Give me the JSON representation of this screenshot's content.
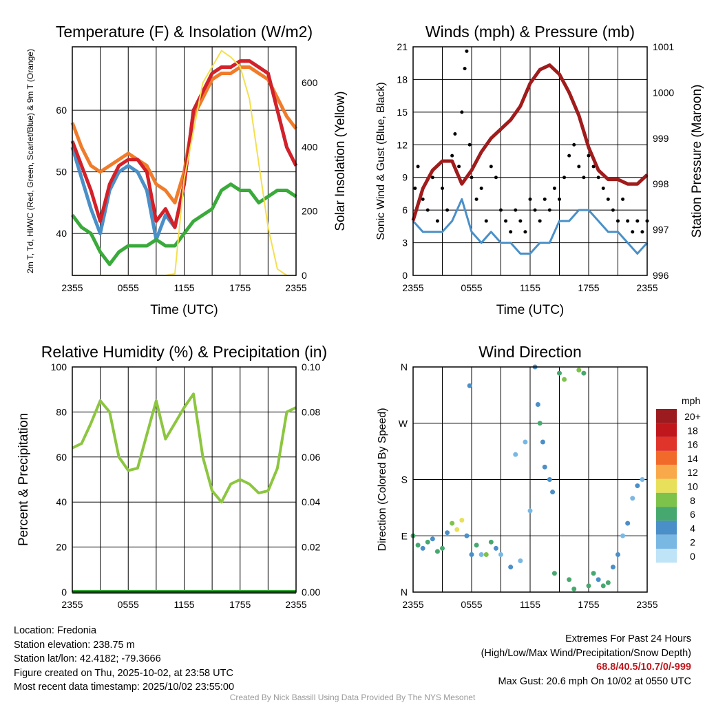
{
  "chart_data": [
    {
      "type": "line",
      "title": "Temperature (F) & Insolation (W/m2)",
      "xlabel": "Time (UTC)",
      "ylabel": "2m T, Td, HI/WC (Red, Green, Scarlet/Blue) & 9m T (Orange)",
      "ylabel2": "Solar Insolation (Yellow)",
      "xticks": [
        "2355",
        "0555",
        "1155",
        "1755",
        "2355"
      ],
      "yticks": [
        40,
        50,
        60
      ],
      "y2ticks": [
        0,
        200,
        400,
        600
      ],
      "xlim": [
        0,
        24
      ],
      "ylim": [
        33.2,
        70.3
      ],
      "y2lim": [
        0,
        712
      ],
      "x": [
        0,
        1,
        2,
        3,
        4,
        5,
        6,
        7,
        8,
        9,
        10,
        11,
        12,
        13,
        14,
        15,
        16,
        17,
        18,
        19,
        20,
        21,
        22,
        23,
        24
      ],
      "series": [
        {
          "name": "9m T",
          "color": "#f07c2a",
          "axis": "left",
          "values": [
            58,
            54,
            51,
            50,
            51,
            52,
            53,
            52,
            51,
            48,
            47,
            45,
            50,
            59,
            62,
            65,
            66,
            66,
            67,
            67,
            66,
            65,
            62,
            59,
            57
          ]
        },
        {
          "name": "HI/WC",
          "color": "#4a90c8",
          "axis": "left",
          "values": [
            54,
            49,
            44,
            40,
            47,
            50,
            51,
            50,
            47,
            39,
            43,
            41,
            48,
            60,
            63,
            66,
            67,
            67,
            68,
            68,
            67,
            66,
            60,
            54,
            51
          ]
        },
        {
          "name": "2m T",
          "color": "#d42028",
          "axis": "left",
          "values": [
            55,
            51,
            47,
            42,
            48,
            51,
            52,
            52,
            50,
            42,
            44,
            41,
            48,
            60,
            63,
            66,
            67,
            67,
            68,
            68,
            67,
            66,
            60,
            54,
            51
          ]
        },
        {
          "name": "Td",
          "color": "#3aaa3a",
          "axis": "left",
          "values": [
            43,
            41,
            40,
            37,
            35,
            37,
            38,
            38,
            38,
            39,
            38,
            38,
            40,
            42,
            43,
            44,
            47,
            48,
            47,
            47,
            45,
            46,
            47,
            47,
            46
          ]
        },
        {
          "name": "Solar",
          "color": "#f5df4d",
          "axis": "right",
          "values": [
            0,
            0,
            0,
            0,
            0,
            0,
            0,
            0,
            0,
            0,
            0,
            5,
            300,
            450,
            600,
            650,
            700,
            680,
            650,
            550,
            350,
            150,
            20,
            0,
            0
          ]
        }
      ]
    },
    {
      "type": "line",
      "title": "Winds (mph) & Pressure (mb)",
      "xlabel": "Time (UTC)",
      "ylabel": "Sonic Wind & Gust (Blue, Black)",
      "ylabel2": "Station Pressure (Maroon)",
      "xticks": [
        "2355",
        "0555",
        "1155",
        "1755",
        "2355"
      ],
      "yticks": [
        0,
        3,
        6,
        9,
        12,
        15,
        18,
        21
      ],
      "y2ticks": [
        996,
        997,
        998,
        999,
        1000,
        1001
      ],
      "xlim": [
        0,
        24
      ],
      "ylim": [
        0,
        21
      ],
      "y2lim": [
        996,
        1001
      ],
      "x": [
        0,
        1,
        2,
        3,
        4,
        5,
        6,
        7,
        8,
        9,
        10,
        11,
        12,
        13,
        14,
        15,
        16,
        17,
        18,
        19,
        20,
        21,
        22,
        23,
        24
      ],
      "wind": {
        "name": "Sonic Wind",
        "color": "#4a90c8",
        "values": [
          5,
          4,
          4,
          4,
          5,
          7,
          4,
          3,
          4,
          3,
          3,
          2,
          2,
          3,
          3,
          5,
          5,
          6,
          6,
          5,
          4,
          4,
          3,
          2,
          3
        ]
      },
      "pressure": {
        "name": "Station Pressure",
        "color": "#a01c1c",
        "values": [
          997.2,
          997.9,
          998.3,
          998.5,
          998.5,
          998.0,
          998.3,
          998.7,
          999,
          999.2,
          999.4,
          999.7,
          1000.2,
          1000.5,
          1000.6,
          1000.4,
          1000,
          999.5,
          998.8,
          998.3,
          998.1,
          998.1,
          998,
          998,
          998.2
        ]
      },
      "gust": {
        "name": "Gust",
        "color": "#000000",
        "points": [
          [
            0.2,
            8
          ],
          [
            0.5,
            10
          ],
          [
            1,
            7
          ],
          [
            1.5,
            6
          ],
          [
            2,
            9
          ],
          [
            2.5,
            5
          ],
          [
            3,
            8
          ],
          [
            3.5,
            6
          ],
          [
            4,
            11
          ],
          [
            4.3,
            13
          ],
          [
            4.7,
            10
          ],
          [
            5,
            15
          ],
          [
            5.3,
            19
          ],
          [
            5.5,
            20.6
          ],
          [
            5.8,
            12
          ],
          [
            6,
            9
          ],
          [
            6.5,
            7
          ],
          [
            7,
            8
          ],
          [
            7.5,
            5
          ],
          [
            8,
            10
          ],
          [
            8.5,
            9
          ],
          [
            9,
            6
          ],
          [
            9.5,
            5
          ],
          [
            10,
            4
          ],
          [
            10.5,
            6
          ],
          [
            11,
            5
          ],
          [
            11.5,
            4
          ],
          [
            12,
            7
          ],
          [
            12.5,
            6
          ],
          [
            13,
            5
          ],
          [
            13.5,
            7
          ],
          [
            14,
            6
          ],
          [
            14.5,
            8
          ],
          [
            15,
            7
          ],
          [
            15.5,
            9
          ],
          [
            16,
            11
          ],
          [
            16.5,
            12
          ],
          [
            17,
            10
          ],
          [
            17.5,
            9
          ],
          [
            18,
            11
          ],
          [
            18.5,
            10
          ],
          [
            19,
            9
          ],
          [
            19.5,
            8
          ],
          [
            20,
            7
          ],
          [
            20.5,
            6
          ],
          [
            21,
            5
          ],
          [
            21.5,
            7
          ],
          [
            22,
            5
          ],
          [
            22.5,
            4
          ],
          [
            23,
            5
          ],
          [
            23.5,
            4
          ],
          [
            24,
            5
          ]
        ]
      }
    },
    {
      "type": "line",
      "title": "Relative Humidity (%) & Precipitation (in)",
      "ylabel": "Percent & Precipitation",
      "xticks": [
        "2355",
        "0555",
        "1155",
        "1755",
        "2355"
      ],
      "yticks": [
        0,
        20,
        40,
        60,
        80,
        100
      ],
      "y2ticks": [
        "0.00",
        "0.02",
        "0.04",
        "0.06",
        "0.08",
        "0.10"
      ],
      "xlim": [
        0,
        24
      ],
      "ylim": [
        0,
        100
      ],
      "y2lim": [
        0,
        0.1
      ],
      "x": [
        0,
        1,
        2,
        3,
        4,
        5,
        6,
        7,
        8,
        9,
        10,
        11,
        12,
        13,
        14,
        15,
        16,
        17,
        18,
        19,
        20,
        21,
        22,
        23,
        24
      ],
      "rh": {
        "name": "RH",
        "color": "#8cc63f",
        "values": [
          64,
          66,
          75,
          85,
          80,
          60,
          54,
          55,
          70,
          85,
          68,
          75,
          82,
          88,
          60,
          45,
          40,
          48,
          50,
          48,
          44,
          45,
          55,
          80,
          82
        ]
      },
      "precip": {
        "name": "Precipitation",
        "color": "#3aaa3a",
        "values": [
          0,
          0,
          0,
          0,
          0,
          0,
          0,
          0,
          0,
          0,
          0,
          0,
          0,
          0,
          0,
          0,
          0,
          0,
          0,
          0,
          0,
          0,
          0,
          0,
          0
        ]
      }
    },
    {
      "type": "scatter",
      "title": "Wind Direction",
      "ylabel": "Direction (Colored By Speed)",
      "xticks": [
        "2355",
        "0555",
        "1155",
        "1755",
        "2355"
      ],
      "yticks": [
        "N",
        "E",
        "S",
        "W",
        "N"
      ],
      "xlim": [
        0,
        24
      ],
      "ylim": [
        0,
        360
      ],
      "legend": {
        "title": "mph",
        "labels": [
          "20+",
          "18",
          "16",
          "14",
          "12",
          "10",
          "8",
          "6",
          "4",
          "2",
          "0"
        ],
        "colors": [
          "#9b1b1e",
          "#c0171d",
          "#e0332a",
          "#f26a2a",
          "#f9a84a",
          "#e8e05a",
          "#7dc24a",
          "#47a86f",
          "#4a8fc8",
          "#7ab8e4",
          "#bfe3f7"
        ]
      },
      "points": [
        [
          0,
          90,
          5
        ],
        [
          0.5,
          75,
          6
        ],
        [
          1,
          70,
          4
        ],
        [
          1.5,
          80,
          5
        ],
        [
          2,
          85,
          3
        ],
        [
          2.5,
          65,
          6
        ],
        [
          3,
          70,
          5
        ],
        [
          3.5,
          95,
          4
        ],
        [
          4,
          110,
          8
        ],
        [
          4.5,
          100,
          9
        ],
        [
          5,
          115,
          9
        ],
        [
          5.5,
          90,
          4
        ],
        [
          5.8,
          330,
          4
        ],
        [
          6,
          60,
          3
        ],
        [
          6.5,
          75,
          5
        ],
        [
          7,
          60,
          2
        ],
        [
          7.5,
          60,
          7
        ],
        [
          8,
          80,
          6
        ],
        [
          8.5,
          70,
          4
        ],
        [
          9,
          60,
          2
        ],
        [
          10,
          40,
          3
        ],
        [
          10.5,
          220,
          2
        ],
        [
          11,
          50,
          2
        ],
        [
          11.5,
          240,
          1
        ],
        [
          12,
          130,
          2
        ],
        [
          12.5,
          360,
          3
        ],
        [
          12.8,
          300,
          4
        ],
        [
          13,
          270,
          5
        ],
        [
          13.3,
          240,
          3
        ],
        [
          13.5,
          200,
          4
        ],
        [
          14,
          180,
          3
        ],
        [
          14.3,
          160,
          4
        ],
        [
          14.5,
          30,
          5
        ],
        [
          15,
          350,
          6
        ],
        [
          15.5,
          340,
          8
        ],
        [
          16,
          20,
          6
        ],
        [
          16.5,
          5,
          5
        ],
        [
          17,
          355,
          7
        ],
        [
          17.5,
          350,
          6
        ],
        [
          18,
          10,
          6
        ],
        [
          18.5,
          30,
          5
        ],
        [
          19,
          20,
          4
        ],
        [
          19.5,
          10,
          6
        ],
        [
          20,
          15,
          5
        ],
        [
          20.5,
          40,
          4
        ],
        [
          21,
          60,
          3
        ],
        [
          21.5,
          90,
          2
        ],
        [
          22,
          110,
          3
        ],
        [
          22.5,
          150,
          2
        ],
        [
          23,
          170,
          3
        ],
        [
          23.5,
          180,
          2
        ]
      ]
    }
  ],
  "info": {
    "location": "Location: Fredonia",
    "elevation": "Station elevation: 238.75 m",
    "latlon": "Station lat/lon: 42.4182; -79.3666",
    "created": "Figure created on Thu, 2025-10-02, at 23:58 UTC",
    "recent": "Most recent data timestamp: 2025/10/02 23:55:00"
  },
  "extremes": {
    "title": "Extremes For Past 24 Hours",
    "subtitle": "(High/Low/Max Wind/Precipitation/Snow Depth)",
    "values": "68.8/40.5/10.7/0/-999",
    "gust": "Max Gust: 20.6 mph On 10/02 at 0550 UTC"
  },
  "credit": "Created By Nick Bassill Using Data Provided By The NYS Mesonet"
}
